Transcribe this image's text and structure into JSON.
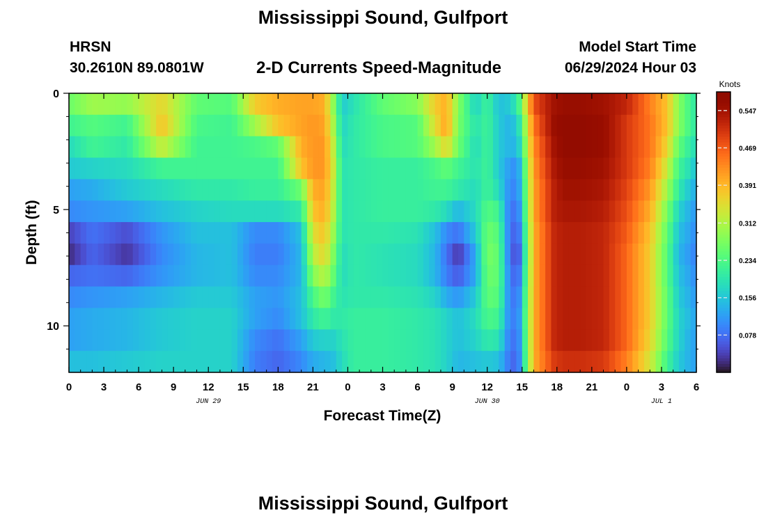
{
  "header": {
    "title": "Mississippi Sound, Gulfport",
    "station": "HRSN",
    "coords": "30.2610N  89.0801W",
    "subtitle": "2-D Currents Speed-Magnitude",
    "model_start_label": "Model Start Time",
    "model_start_value": "06/29/2024 Hour 03"
  },
  "footer": {
    "title": "Mississippi Sound, Gulfport"
  },
  "chart_data": {
    "type": "heatmap",
    "xlabel": "Forecast Time(Z)",
    "ylabel": "Depth (ft)",
    "x_range_hours": [
      0,
      54
    ],
    "y_range_ft": [
      0,
      12
    ],
    "y_ticks": [
      0,
      5,
      10
    ],
    "x_tick_labels": [
      "0",
      "3",
      "6",
      "9",
      "12",
      "15",
      "18",
      "21",
      "0",
      "3",
      "6",
      "9",
      "12",
      "15",
      "18",
      "21",
      "0",
      "3",
      "6"
    ],
    "date_labels": [
      {
        "hour": 12,
        "text": "JUN 29"
      },
      {
        "hour": 36,
        "text": "JUN 30"
      },
      {
        "hour": 51,
        "text": "JUL 1"
      }
    ],
    "colorbar": {
      "units": "Knots",
      "min": 0.0,
      "max": 0.586,
      "ticks": [
        "0.547",
        "0.469",
        "0.391",
        "0.312",
        "0.234",
        "0.156",
        "0.078"
      ],
      "tick_values": [
        0.547,
        0.469,
        0.391,
        0.312,
        0.234,
        0.156,
        0.078
      ],
      "colormap": "turbo"
    },
    "depths_ft": [
      0,
      1,
      2,
      3,
      4,
      5,
      6,
      7,
      8,
      9,
      10,
      11,
      12
    ],
    "time_profile_hours": [
      0,
      2,
      5,
      8,
      11,
      14,
      16,
      18,
      20,
      21,
      22,
      22.8,
      23.5,
      24.5,
      27,
      30,
      31.5,
      32.5,
      33.5,
      35,
      36,
      37,
      37.8,
      38.6,
      40,
      41.8,
      42.6,
      44,
      46,
      48,
      50,
      51.5,
      52.5,
      53.5,
      54
    ],
    "speed_profile_knots": [
      [
        0.26,
        0.3,
        0.29,
        0.36,
        0.25,
        0.24,
        0.37,
        0.4,
        0.41,
        0.41,
        0.4,
        0.28,
        0.16,
        0.19,
        0.25,
        0.28,
        0.37,
        0.4,
        0.28,
        0.17,
        0.22,
        0.15,
        0.16,
        0.2,
        0.48,
        0.55,
        0.56,
        0.56,
        0.55,
        0.52,
        0.44,
        0.38,
        0.28,
        0.22,
        0.2
      ],
      [
        0.22,
        0.24,
        0.22,
        0.38,
        0.23,
        0.22,
        0.3,
        0.38,
        0.41,
        0.42,
        0.41,
        0.3,
        0.17,
        0.2,
        0.23,
        0.24,
        0.35,
        0.41,
        0.27,
        0.19,
        0.22,
        0.16,
        0.14,
        0.16,
        0.45,
        0.56,
        0.57,
        0.57,
        0.56,
        0.5,
        0.45,
        0.38,
        0.28,
        0.22,
        0.2
      ],
      [
        0.18,
        0.22,
        0.2,
        0.33,
        0.22,
        0.22,
        0.23,
        0.25,
        0.4,
        0.42,
        0.42,
        0.32,
        0.18,
        0.2,
        0.23,
        0.24,
        0.3,
        0.36,
        0.26,
        0.18,
        0.22,
        0.16,
        0.14,
        0.14,
        0.43,
        0.55,
        0.57,
        0.57,
        0.56,
        0.5,
        0.45,
        0.36,
        0.25,
        0.2,
        0.18
      ],
      [
        0.16,
        0.17,
        0.18,
        0.22,
        0.22,
        0.22,
        0.22,
        0.22,
        0.38,
        0.42,
        0.42,
        0.33,
        0.19,
        0.2,
        0.21,
        0.21,
        0.23,
        0.25,
        0.22,
        0.19,
        0.22,
        0.16,
        0.12,
        0.1,
        0.42,
        0.54,
        0.56,
        0.56,
        0.55,
        0.5,
        0.44,
        0.33,
        0.22,
        0.18,
        0.15
      ],
      [
        0.12,
        0.13,
        0.16,
        0.18,
        0.2,
        0.2,
        0.21,
        0.21,
        0.26,
        0.4,
        0.41,
        0.32,
        0.19,
        0.2,
        0.21,
        0.21,
        0.22,
        0.22,
        0.2,
        0.18,
        0.22,
        0.18,
        0.11,
        0.09,
        0.41,
        0.53,
        0.55,
        0.55,
        0.54,
        0.49,
        0.42,
        0.3,
        0.2,
        0.15,
        0.13
      ],
      [
        0.1,
        0.11,
        0.12,
        0.15,
        0.17,
        0.18,
        0.18,
        0.18,
        0.2,
        0.38,
        0.4,
        0.31,
        0.19,
        0.2,
        0.21,
        0.21,
        0.2,
        0.18,
        0.14,
        0.18,
        0.24,
        0.22,
        0.1,
        0.07,
        0.41,
        0.53,
        0.54,
        0.54,
        0.53,
        0.48,
        0.4,
        0.27,
        0.17,
        0.13,
        0.11
      ],
      [
        0.04,
        0.08,
        0.05,
        0.11,
        0.15,
        0.15,
        0.1,
        0.1,
        0.15,
        0.35,
        0.38,
        0.29,
        0.19,
        0.2,
        0.2,
        0.19,
        0.15,
        0.1,
        0.08,
        0.16,
        0.26,
        0.24,
        0.1,
        0.05,
        0.4,
        0.52,
        0.53,
        0.53,
        0.52,
        0.47,
        0.38,
        0.25,
        0.15,
        0.12,
        0.1
      ],
      [
        0.02,
        0.07,
        0.03,
        0.1,
        0.14,
        0.15,
        0.09,
        0.09,
        0.14,
        0.32,
        0.36,
        0.27,
        0.18,
        0.2,
        0.19,
        0.18,
        0.14,
        0.08,
        0.03,
        0.13,
        0.27,
        0.25,
        0.1,
        0.03,
        0.4,
        0.52,
        0.53,
        0.53,
        0.52,
        0.46,
        0.37,
        0.24,
        0.14,
        0.11,
        0.09
      ],
      [
        0.07,
        0.08,
        0.07,
        0.11,
        0.14,
        0.15,
        0.1,
        0.1,
        0.14,
        0.28,
        0.32,
        0.25,
        0.18,
        0.2,
        0.19,
        0.18,
        0.14,
        0.09,
        0.06,
        0.13,
        0.26,
        0.25,
        0.11,
        0.05,
        0.4,
        0.52,
        0.53,
        0.53,
        0.52,
        0.46,
        0.37,
        0.24,
        0.15,
        0.12,
        0.1
      ],
      [
        0.1,
        0.11,
        0.12,
        0.14,
        0.16,
        0.16,
        0.12,
        0.11,
        0.15,
        0.23,
        0.27,
        0.22,
        0.19,
        0.2,
        0.2,
        0.19,
        0.17,
        0.13,
        0.11,
        0.16,
        0.25,
        0.24,
        0.11,
        0.07,
        0.4,
        0.52,
        0.53,
        0.53,
        0.52,
        0.46,
        0.37,
        0.25,
        0.16,
        0.13,
        0.11
      ],
      [
        0.12,
        0.13,
        0.14,
        0.16,
        0.17,
        0.17,
        0.12,
        0.1,
        0.15,
        0.2,
        0.22,
        0.2,
        0.2,
        0.21,
        0.21,
        0.2,
        0.19,
        0.17,
        0.15,
        0.18,
        0.23,
        0.22,
        0.11,
        0.08,
        0.4,
        0.52,
        0.53,
        0.53,
        0.52,
        0.46,
        0.37,
        0.25,
        0.17,
        0.14,
        0.12
      ],
      [
        0.12,
        0.13,
        0.14,
        0.16,
        0.17,
        0.17,
        0.1,
        0.08,
        0.12,
        0.16,
        0.17,
        0.17,
        0.19,
        0.21,
        0.21,
        0.2,
        0.19,
        0.17,
        0.15,
        0.17,
        0.2,
        0.19,
        0.1,
        0.07,
        0.4,
        0.52,
        0.53,
        0.53,
        0.52,
        0.46,
        0.36,
        0.24,
        0.17,
        0.13,
        0.12
      ],
      [
        0.15,
        0.15,
        0.16,
        0.17,
        0.17,
        0.17,
        0.09,
        0.07,
        0.1,
        0.13,
        0.14,
        0.15,
        0.18,
        0.21,
        0.21,
        0.2,
        0.19,
        0.17,
        0.14,
        0.15,
        0.16,
        0.15,
        0.09,
        0.06,
        0.4,
        0.5,
        0.51,
        0.51,
        0.5,
        0.44,
        0.34,
        0.22,
        0.16,
        0.13,
        0.12
      ]
    ]
  }
}
